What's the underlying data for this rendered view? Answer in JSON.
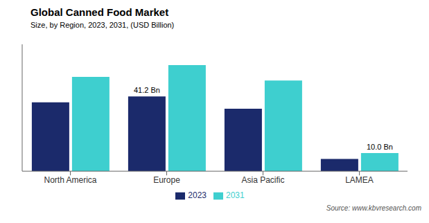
{
  "chart_data": {
    "type": "bar",
    "title": "Global  Canned Food Market",
    "subtitle": "Size, by Region, 2023, 2031, (USD Billion)",
    "source": "Source: www.kbvresearch.com",
    "categories": [
      "North America",
      "Europe",
      "Asia Pacific",
      "LAMEA"
    ],
    "series": [
      {
        "name": "2023",
        "color": "#1b2a6b",
        "values": [
          38.0,
          41.2,
          34.5,
          6.8
        ]
      },
      {
        "name": "2031",
        "color": "#3ecfcf",
        "values": [
          52.0,
          58.5,
          50.0,
          10.0
        ]
      }
    ],
    "annotations": [
      {
        "text": "41.2 Bn",
        "category": "Europe",
        "series": "2023"
      },
      {
        "text": "10.0 Bn",
        "category": "LAMEA",
        "series": "2031"
      }
    ],
    "ylim": [
      0,
      70
    ],
    "grid": false,
    "legend": "bottom",
    "tick_labels": "x"
  }
}
